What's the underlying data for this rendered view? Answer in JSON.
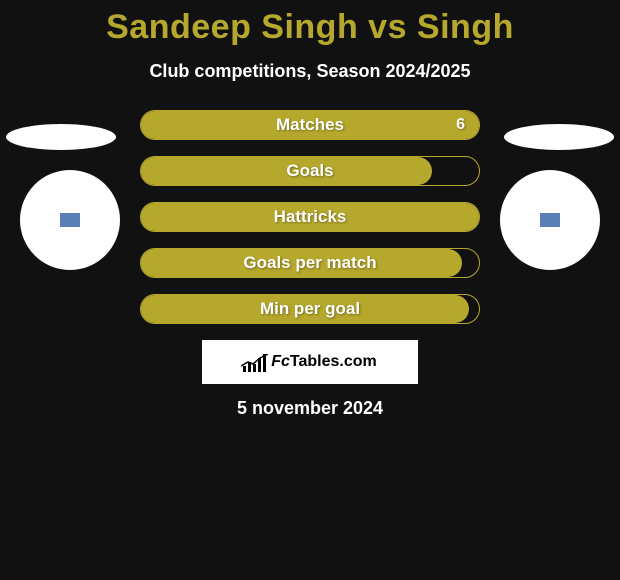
{
  "title": "Sandeep Singh vs Singh",
  "subtitle": "Club competitions, Season 2024/2025",
  "date": "5 november 2024",
  "logo_text": "FcTables.com",
  "background_color": "#111111",
  "title_color": "#b5a82d",
  "text_color": "#ffffff",
  "bars": [
    {
      "label": "Matches",
      "value": "6",
      "fill": 1.0,
      "border": "#b5a82d",
      "fill_color": "#b5a82d"
    },
    {
      "label": "Goals",
      "value": "",
      "fill": 0.86,
      "border": "#b5a82d",
      "fill_color": "#b5a82d"
    },
    {
      "label": "Hattricks",
      "value": "",
      "fill": 1.0,
      "border": "#b5a82d",
      "fill_color": "#b5a82d"
    },
    {
      "label": "Goals per match",
      "value": "",
      "fill": 0.95,
      "border": "#b5a82d",
      "fill_color": "#b5a82d"
    },
    {
      "label": "Min per goal",
      "value": "",
      "fill": 0.97,
      "border": "#b5a82d",
      "fill_color": "#b5a82d"
    }
  ],
  "avatar_badge_color": "#5a7fb5",
  "ellipse_color": "#ffffff"
}
